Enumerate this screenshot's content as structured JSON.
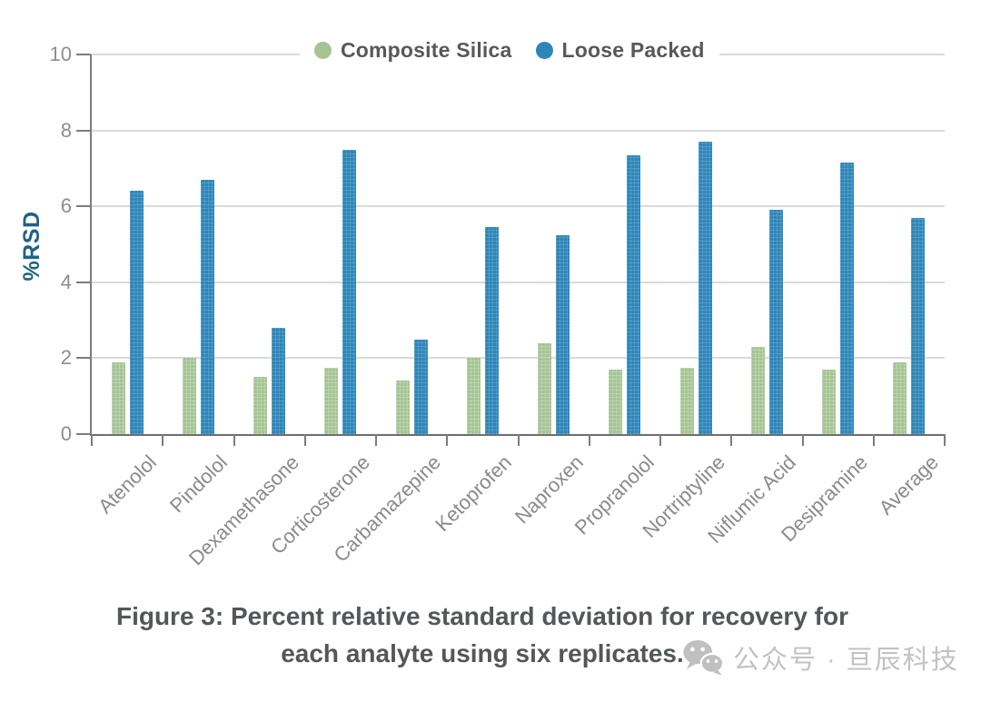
{
  "chart_data": {
    "type": "bar",
    "title": "",
    "xlabel": "",
    "ylabel": "%RSD",
    "ylim": [
      0,
      10
    ],
    "yticks": [
      0,
      2,
      4,
      6,
      8,
      10
    ],
    "grid": true,
    "legend_position": "top-center",
    "categories": [
      "Atenolol",
      "Pindolol",
      "Dexamethasone",
      "Corticosterone",
      "Carbamazepine",
      "Ketoprofen",
      "Naproxen",
      "Propranolol",
      "Nortriptyline",
      "Niflumic Acid",
      "Desipramine",
      "Average"
    ],
    "series": [
      {
        "name": "Composite Silica",
        "color": "#a4c493",
        "values": [
          1.9,
          2.0,
          1.5,
          1.75,
          1.4,
          2.0,
          2.4,
          1.7,
          1.75,
          2.3,
          1.7,
          1.9
        ]
      },
      {
        "name": "Loose Packed",
        "color": "#2e86b8",
        "values": [
          6.4,
          6.7,
          2.8,
          7.5,
          2.5,
          5.45,
          5.25,
          7.35,
          7.7,
          5.9,
          7.15,
          5.7
        ]
      }
    ]
  },
  "caption": {
    "line1": "Figure 3: Percent relative standard deviation for recovery for",
    "line2": "each analyte using six replicates."
  },
  "watermark": {
    "icon": "wechat-icon",
    "text": "公众号 · 亘辰科技"
  },
  "colors": {
    "composite_silica": "#a4c493",
    "loose_packed": "#2e86b8",
    "ylabel_text": "#1e6385",
    "axis": "#7c7c7c",
    "gridline": "#dadada",
    "tick_label": "#8d8d8d",
    "legend_text": "#57585a",
    "caption_text": "#53575a",
    "watermark_gray": "#c2c2c2"
  }
}
